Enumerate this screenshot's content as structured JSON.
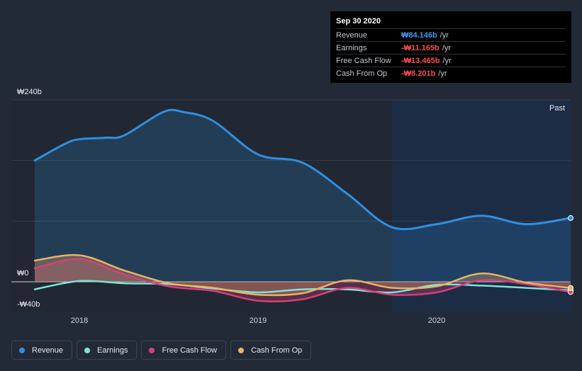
{
  "tooltip": {
    "date": "Sep 30 2020",
    "rows": [
      {
        "label": "Revenue",
        "value": "₩84.146b",
        "unit": "/yr",
        "color": "#3a9bf0"
      },
      {
        "label": "Earnings",
        "value": "-₩11.165b",
        "unit": "/yr",
        "color": "#ff4d4d"
      },
      {
        "label": "Free Cash Flow",
        "value": "-₩13.465b",
        "unit": "/yr",
        "color": "#ff4d4d"
      },
      {
        "label": "Cash From Op",
        "value": "-₩8.201b",
        "unit": "/yr",
        "color": "#ff4d4d"
      }
    ]
  },
  "past_label": "Past",
  "chart_data": {
    "type": "line",
    "x_unit": "year",
    "y_unit": "₩ billions",
    "ylim": [
      -40,
      240
    ],
    "y_tick_labels": [
      {
        "value": 240,
        "label": "₩240b"
      },
      {
        "value": 0,
        "label": "₩0"
      },
      {
        "value": -40,
        "label": "-₩40b"
      }
    ],
    "x_ticks": [
      {
        "value": 2018.0,
        "label": "2018"
      },
      {
        "value": 2019.0,
        "label": "2019"
      },
      {
        "value": 2020.0,
        "label": "2020"
      }
    ],
    "past_region_start": 2019.75,
    "series": [
      {
        "name": "Revenue",
        "color": "#2e8fe0",
        "fill": true,
        "points": [
          [
            2017.75,
            160
          ],
          [
            2017.92,
            182
          ],
          [
            2018.0,
            188
          ],
          [
            2018.15,
            190
          ],
          [
            2018.25,
            193
          ],
          [
            2018.47,
            224
          ],
          [
            2018.58,
            224
          ],
          [
            2018.75,
            212
          ],
          [
            2019.0,
            168
          ],
          [
            2019.25,
            157
          ],
          [
            2019.5,
            116
          ],
          [
            2019.75,
            72
          ],
          [
            2020.0,
            76
          ],
          [
            2020.25,
            87
          ],
          [
            2020.5,
            76
          ],
          [
            2020.75,
            84.146
          ]
        ]
      },
      {
        "name": "Earnings",
        "color": "#7fe3d6",
        "fill": false,
        "points": [
          [
            2017.75,
            -10
          ],
          [
            2018.0,
            1
          ],
          [
            2018.25,
            -2
          ],
          [
            2018.5,
            -3
          ],
          [
            2018.75,
            -9
          ],
          [
            2019.0,
            -14
          ],
          [
            2019.25,
            -10
          ],
          [
            2019.5,
            -10
          ],
          [
            2019.75,
            -14
          ],
          [
            2020.0,
            -4
          ],
          [
            2020.25,
            -5
          ],
          [
            2020.5,
            -8
          ],
          [
            2020.75,
            -11.165
          ]
        ]
      },
      {
        "name": "Free Cash Flow",
        "color": "#d6407a",
        "fill": true,
        "points": [
          [
            2017.75,
            18
          ],
          [
            2018.0,
            30
          ],
          [
            2018.25,
            10
          ],
          [
            2018.5,
            -6
          ],
          [
            2018.75,
            -12
          ],
          [
            2019.0,
            -25
          ],
          [
            2019.25,
            -23
          ],
          [
            2019.5,
            -8
          ],
          [
            2019.75,
            -17
          ],
          [
            2020.0,
            -14
          ],
          [
            2020.25,
            2
          ],
          [
            2020.5,
            -3
          ],
          [
            2020.75,
            -13.465
          ]
        ]
      },
      {
        "name": "Cash From Op",
        "color": "#e9b266",
        "fill": true,
        "points": [
          [
            2017.75,
            28
          ],
          [
            2018.0,
            35
          ],
          [
            2018.25,
            15
          ],
          [
            2018.5,
            -2
          ],
          [
            2018.75,
            -8
          ],
          [
            2019.0,
            -17
          ],
          [
            2019.25,
            -15
          ],
          [
            2019.5,
            2
          ],
          [
            2019.75,
            -8
          ],
          [
            2020.0,
            -6
          ],
          [
            2020.25,
            11
          ],
          [
            2020.5,
            -1
          ],
          [
            2020.75,
            -8.201
          ]
        ]
      }
    ]
  },
  "legend": [
    {
      "label": "Revenue",
      "color": "#2e8fe0"
    },
    {
      "label": "Earnings",
      "color": "#7fe3d6"
    },
    {
      "label": "Free Cash Flow",
      "color": "#d6407a"
    },
    {
      "label": "Cash From Op",
      "color": "#e9b266"
    }
  ]
}
